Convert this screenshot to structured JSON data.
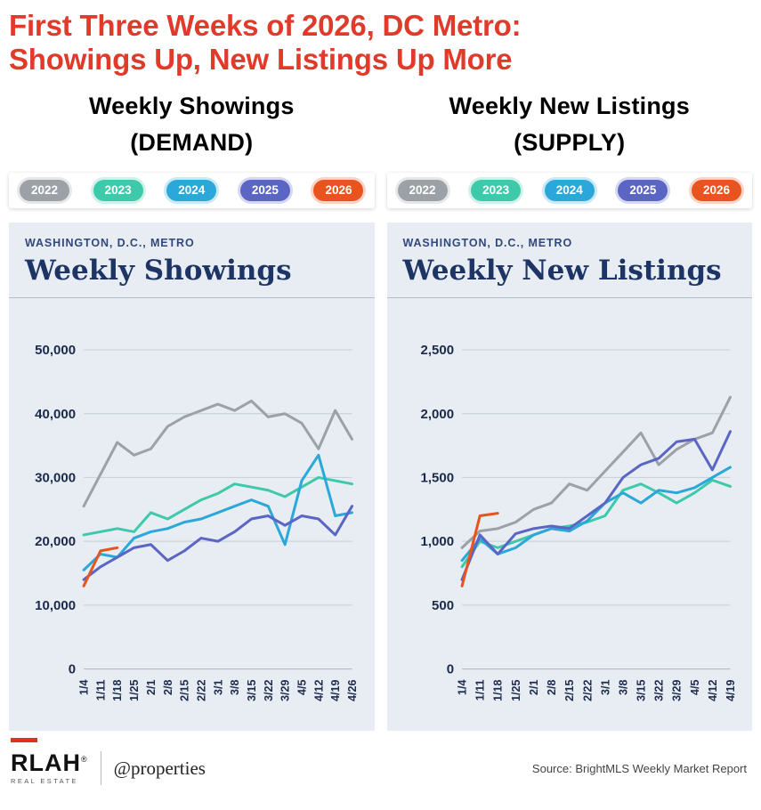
{
  "title": {
    "line1": "First Three Weeks of 2026, DC Metro:",
    "line2": "Showings Up, New Listings Up More"
  },
  "colors": {
    "title-red": "#e03a2b",
    "card-bg": "#e7edf3",
    "navy": "#1d3464",
    "grid": "#c9d3dc",
    "dash-red": "#e0301e"
  },
  "columns": [
    {
      "heading_line1": "Weekly Showings",
      "heading_line2": "(DEMAND)"
    },
    {
      "heading_line1": "Weekly New Listings",
      "heading_line2": "(SUPPLY)"
    }
  ],
  "legend": {
    "years": [
      {
        "label": "2022",
        "color": "#9ba1a6"
      },
      {
        "label": "2023",
        "color": "#3ec9ab"
      },
      {
        "label": "2024",
        "color": "#2ba7d9"
      },
      {
        "label": "2025",
        "color": "#5a65c4"
      },
      {
        "label": "2026",
        "color": "#e9531d"
      }
    ]
  },
  "chart_data": [
    {
      "type": "line",
      "region_label": "WASHINGTON, D.C., METRO",
      "title": "Weekly Showings",
      "x": [
        "1/4",
        "1/11",
        "1/18",
        "1/25",
        "2/1",
        "2/8",
        "2/15",
        "2/22",
        "3/1",
        "3/8",
        "3/15",
        "3/22",
        "3/29",
        "4/5",
        "4/12",
        "4/19",
        "4/26"
      ],
      "ylim": [
        0,
        50000
      ],
      "yticks": [
        0,
        10000,
        20000,
        30000,
        40000,
        50000
      ],
      "ytick_labels": [
        "0",
        "10,000",
        "20,000",
        "30,000",
        "40,000",
        "50,000"
      ],
      "grid": true,
      "legend_position": "top",
      "series": [
        {
          "name": "2022",
          "color": "#9ba1a6",
          "values": [
            25500,
            30500,
            35500,
            33500,
            34500,
            38000,
            39500,
            40500,
            41500,
            40500,
            42000,
            39500,
            40000,
            38500,
            34500,
            40500,
            36000
          ]
        },
        {
          "name": "2023",
          "color": "#3ec9ab",
          "values": [
            21000,
            21500,
            22000,
            21500,
            24500,
            23500,
            25000,
            26500,
            27500,
            29000,
            28500,
            28000,
            27000,
            28500,
            30000,
            29500,
            29000
          ]
        },
        {
          "name": "2024",
          "color": "#2ba7d9",
          "values": [
            15500,
            18000,
            17500,
            20500,
            21500,
            22000,
            23000,
            23500,
            24500,
            25500,
            26500,
            25500,
            19500,
            29500,
            33500,
            24000,
            24500
          ]
        },
        {
          "name": "2025",
          "color": "#5a65c4",
          "values": [
            14000,
            16000,
            17500,
            19000,
            19500,
            17000,
            18500,
            20500,
            20000,
            21500,
            23500,
            24000,
            22500,
            24000,
            23500,
            21000,
            25500
          ]
        },
        {
          "name": "2026",
          "color": "#e9531d",
          "values": [
            13000,
            18500,
            19000,
            null,
            null,
            null,
            null,
            null,
            null,
            null,
            null,
            null,
            null,
            null,
            null,
            null,
            null
          ]
        }
      ]
    },
    {
      "type": "line",
      "region_label": "WASHINGTON, D.C., METRO",
      "title": "Weekly New Listings",
      "x": [
        "1/4",
        "1/11",
        "1/18",
        "1/25",
        "2/1",
        "2/8",
        "2/15",
        "2/22",
        "3/1",
        "3/8",
        "3/15",
        "3/22",
        "3/29",
        "4/5",
        "4/12",
        "4/19"
      ],
      "ylim": [
        0,
        2500
      ],
      "yticks": [
        0,
        500,
        1000,
        1500,
        2000,
        2500
      ],
      "ytick_labels": [
        "0",
        "500",
        "1,000",
        "1,500",
        "2,000",
        "2,500"
      ],
      "grid": true,
      "legend_position": "top",
      "series": [
        {
          "name": "2022",
          "color": "#9ba1a6",
          "values": [
            950,
            1080,
            1100,
            1150,
            1250,
            1300,
            1450,
            1400,
            1550,
            1700,
            1850,
            1600,
            1720,
            1800,
            1850,
            2130
          ]
        },
        {
          "name": "2023",
          "color": "#3ec9ab",
          "values": [
            800,
            1000,
            950,
            1000,
            1050,
            1100,
            1120,
            1150,
            1200,
            1400,
            1450,
            1380,
            1300,
            1380,
            1480,
            1430
          ]
        },
        {
          "name": "2024",
          "color": "#2ba7d9",
          "values": [
            850,
            1020,
            900,
            950,
            1050,
            1100,
            1080,
            1160,
            1300,
            1380,
            1300,
            1400,
            1380,
            1420,
            1500,
            1580
          ]
        },
        {
          "name": "2025",
          "color": "#5a65c4",
          "values": [
            700,
            1050,
            900,
            1060,
            1100,
            1120,
            1100,
            1200,
            1300,
            1500,
            1600,
            1650,
            1780,
            1800,
            1560,
            1860
          ]
        },
        {
          "name": "2026",
          "color": "#e9531d",
          "values": [
            650,
            1200,
            1220,
            null,
            null,
            null,
            null,
            null,
            null,
            null,
            null,
            null,
            null,
            null,
            null,
            null
          ]
        }
      ]
    }
  ],
  "footer": {
    "brand_primary": "RLAH",
    "brand_primary_mark": "®",
    "brand_primary_sub": "REAL ESTATE",
    "brand_secondary": "@properties",
    "source": "Source: BrightMLS Weekly Market Report"
  }
}
